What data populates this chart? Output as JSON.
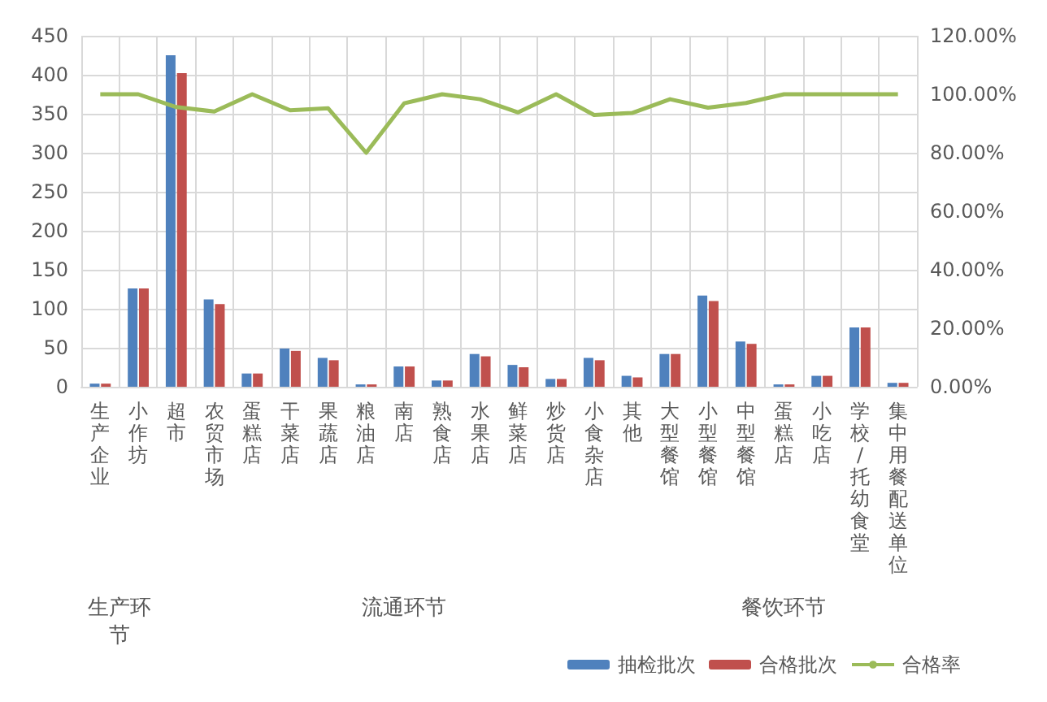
{
  "chart_data": {
    "type": "bar",
    "categories": [
      "生产企业",
      "小作坊",
      "超市",
      "农贸市场",
      "蛋糕店",
      "干菜店",
      "果蔬店",
      "粮油店",
      "南店",
      "熟食店",
      "水果店",
      "鲜菜店",
      "炒货店",
      "小食杂店",
      "其他",
      "大型餐馆",
      "小型餐馆",
      "中型餐馆",
      "蛋糕店",
      "小吃店",
      "学校/托幼食堂",
      "集中用餐配送单位"
    ],
    "series": [
      {
        "name": "抽检批次",
        "color": "#4f81bd",
        "values": [
          4,
          126,
          425,
          112,
          17,
          49,
          37,
          3,
          26,
          8,
          42,
          28,
          10,
          37,
          14,
          42,
          117,
          58,
          3,
          14,
          76,
          5
        ]
      },
      {
        "name": "合格批次",
        "color": "#c0504d",
        "values": [
          4,
          126,
          402,
          106,
          17,
          46,
          34,
          3,
          26,
          8,
          39,
          25,
          10,
          34,
          12,
          42,
          110,
          55,
          3,
          14,
          76,
          5
        ]
      },
      {
        "name": "合格率",
        "type": "line",
        "axis": "y2",
        "color": "#9bbb59",
        "values": [
          100,
          100,
          95.6,
          94.1,
          100,
          94.5,
          95.2,
          80,
          96.9,
          100,
          98.3,
          93.8,
          100,
          92.9,
          93.6,
          98.3,
          95.4,
          97,
          100,
          100,
          100,
          100
        ]
      }
    ],
    "annotations": [
      "生产环节",
      "流通环节",
      "餐饮环节"
    ],
    "ylim": [
      0,
      450
    ],
    "yticks": [
      0,
      50,
      100,
      150,
      200,
      250,
      300,
      350,
      400,
      450
    ],
    "y2lim": [
      0,
      120
    ],
    "y2ticks": [
      {
        "value": 0,
        "label": "0.00%"
      },
      {
        "value": 20,
        "label": "20.00%"
      },
      {
        "value": 40,
        "label": "40.00%"
      },
      {
        "value": 60,
        "label": "60.00%"
      },
      {
        "value": 80,
        "label": "80.00%"
      },
      {
        "value": 100,
        "label": "100.00%"
      },
      {
        "value": 120,
        "label": "120.00%"
      }
    ],
    "grid": true,
    "legend": "bottom right",
    "marker": "none"
  }
}
